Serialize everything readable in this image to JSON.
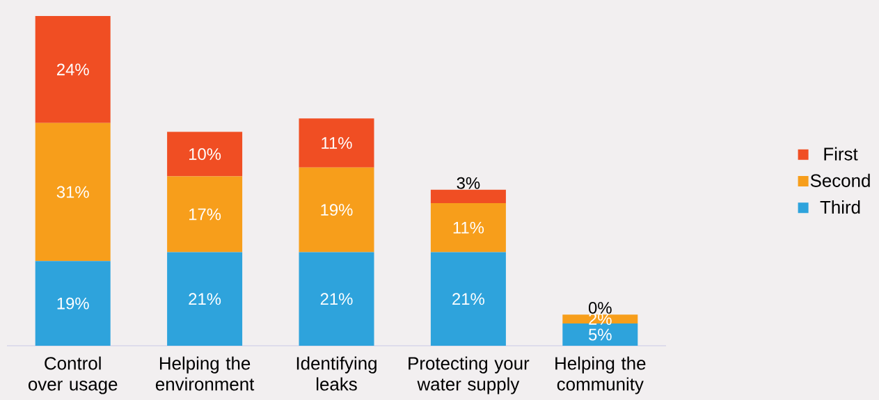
{
  "chart_data": {
    "type": "bar",
    "stacked": true,
    "legend": "right",
    "categories": [
      "Control over usage",
      "Helping the environment",
      "Identifying leaks",
      "Protecting your water supply",
      "Helping the community"
    ],
    "series": [
      {
        "name": "Third",
        "color": "#2ea3dc",
        "values": [
          19,
          21,
          21,
          21,
          5
        ],
        "value_labels": [
          "19%",
          "21%",
          "21%",
          "21%",
          "5%"
        ]
      },
      {
        "name": "Second",
        "color": "#f79e1b",
        "values": [
          31,
          17,
          19,
          11,
          2
        ],
        "value_labels": [
          "31%",
          "17%",
          "19%",
          "11%",
          "2%"
        ]
      },
      {
        "name": "First",
        "color": "#f04e23",
        "values": [
          24,
          10,
          11,
          3,
          0
        ],
        "value_labels": [
          "24%",
          "10%",
          "11%",
          "3%",
          "0%"
        ]
      }
    ]
  }
}
